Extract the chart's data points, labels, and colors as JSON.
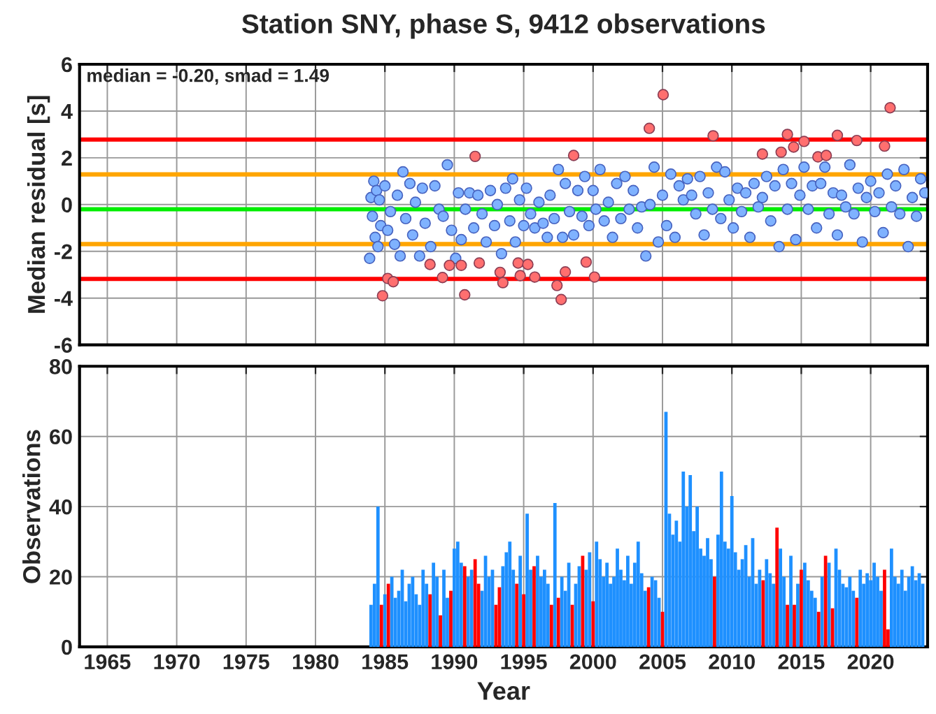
{
  "chart_data": [
    {
      "type": "scatter",
      "title": "Station SNY, phase S, 9412 observations",
      "ylabel": "Median residual [s]",
      "annotations": [
        "median = -0.20, smad = 1.49"
      ],
      "xlim": [
        1963,
        2024.1
      ],
      "xticks": [
        1965,
        1970,
        1975,
        1980,
        1985,
        1990,
        1995,
        2000,
        2005,
        2010,
        2015,
        2020
      ],
      "ylim": [
        -6,
        6
      ],
      "yticks": [
        -6,
        -4,
        -2,
        0,
        2,
        4,
        6
      ],
      "grid": true,
      "marker": "circle",
      "tick_labels": "y",
      "ref_lines": [
        {
          "axis": "y",
          "value": 2.78,
          "color": "#ff0000"
        },
        {
          "axis": "y",
          "value": 1.29,
          "color": "#ffa500"
        },
        {
          "axis": "y",
          "value": -0.2,
          "color": "#00ee00"
        },
        {
          "axis": "y",
          "value": -1.69,
          "color": "#ffa500"
        },
        {
          "axis": "y",
          "value": -3.18,
          "color": "#ff0000"
        }
      ],
      "series": [
        {
          "color": "#7fb2ff",
          "x": [
            1983.9,
            1984.0,
            1984.1,
            1984.2,
            1984.3,
            1984.4,
            1984.5,
            1984.6,
            1984.7,
            1985.0,
            1985.2,
            1985.4,
            1985.7,
            1985.9,
            1986.1,
            1986.3,
            1986.5,
            1986.8,
            1987.0,
            1987.2,
            1987.5,
            1987.7,
            1987.9,
            1988.3,
            1988.6,
            1988.9,
            1989.2,
            1989.5,
            1989.8,
            1990.1,
            1990.3,
            1990.5,
            1990.8,
            1991.1,
            1991.4,
            1991.7,
            1992.0,
            1992.3,
            1992.6,
            1992.9,
            1993.1,
            1993.4,
            1993.7,
            1994.0,
            1994.2,
            1994.4,
            1994.7,
            1995.0,
            1995.2,
            1995.5,
            1995.8,
            1996.1,
            1996.4,
            1996.7,
            1996.9,
            1997.2,
            1997.5,
            1997.8,
            1998.0,
            1998.3,
            1998.6,
            1998.9,
            1999.2,
            1999.4,
            1999.7,
            2000.0,
            2000.2,
            2000.5,
            2000.8,
            2001.1,
            2001.4,
            2001.7,
            2002.0,
            2002.3,
            2002.6,
            2002.9,
            2003.2,
            2003.5,
            2003.8,
            2004.1,
            2004.4,
            2004.7,
            2005.0,
            2005.3,
            2005.6,
            2005.9,
            2006.2,
            2006.5,
            2006.8,
            2007.1,
            2007.4,
            2007.7,
            2008.0,
            2008.3,
            2008.6,
            2008.9,
            2009.2,
            2009.5,
            2009.8,
            2010.1,
            2010.4,
            2010.7,
            2011.0,
            2011.3,
            2011.6,
            2011.9,
            2012.2,
            2012.5,
            2012.8,
            2013.1,
            2013.4,
            2013.7,
            2014.0,
            2014.3,
            2014.6,
            2014.9,
            2015.2,
            2015.5,
            2015.8,
            2016.1,
            2016.4,
            2016.7,
            2017.0,
            2017.3,
            2017.6,
            2017.9,
            2018.2,
            2018.5,
            2018.8,
            2019.1,
            2019.4,
            2019.7,
            2020.0,
            2020.3,
            2020.6,
            2020.9,
            2021.2,
            2021.5,
            2021.8,
            2022.1,
            2022.4,
            2022.7,
            2023.0,
            2023.3,
            2023.6,
            2023.9
          ],
          "values": [
            -2.3,
            0.3,
            -0.5,
            1.0,
            -1.4,
            0.6,
            -1.8,
            0.2,
            -0.9,
            0.8,
            -1.1,
            -0.3,
            -1.7,
            0.4,
            -2.2,
            1.4,
            -0.6,
            0.9,
            -1.3,
            0.1,
            -2.2,
            0.7,
            -0.8,
            -1.8,
            0.8,
            -0.2,
            -0.5,
            1.7,
            -1.1,
            -2.3,
            0.5,
            -1.5,
            -0.2,
            0.5,
            -1.0,
            0.4,
            -0.4,
            -1.6,
            0.6,
            -0.9,
            0.0,
            -2.1,
            0.7,
            -0.7,
            1.1,
            -1.6,
            0.2,
            -0.9,
            0.7,
            -0.4,
            -1.0,
            0.1,
            -0.8,
            -1.4,
            0.4,
            -0.6,
            1.5,
            -1.4,
            0.9,
            -0.3,
            -1.3,
            0.6,
            -0.5,
            1.2,
            -0.9,
            0.6,
            -0.2,
            1.5,
            -0.7,
            0.1,
            -1.4,
            0.9,
            -0.6,
            1.2,
            -0.2,
            0.6,
            -1.0,
            -0.1,
            -2.2,
            0.0,
            1.6,
            -1.6,
            0.4,
            -0.9,
            1.3,
            -1.4,
            0.8,
            0.2,
            1.1,
            0.4,
            -0.4,
            1.2,
            -1.3,
            0.5,
            -0.2,
            1.6,
            -0.6,
            1.4,
            0.2,
            -1.0,
            0.7,
            -0.3,
            0.5,
            -1.4,
            0.9,
            -0.1,
            0.3,
            1.2,
            -0.7,
            0.8,
            -1.8,
            1.5,
            -0.2,
            0.9,
            -1.5,
            0.4,
            1.6,
            -0.2,
            0.8,
            -1.0,
            0.9,
            1.6,
            -0.4,
            0.5,
            -1.3,
            0.4,
            -0.1,
            1.7,
            -0.4,
            0.7,
            -1.6,
            0.3,
            1.0,
            -0.3,
            0.5,
            -1.2,
            1.3,
            -0.1,
            0.8,
            -0.4,
            1.5,
            -1.8,
            0.3,
            -0.5,
            1.1,
            0.5
          ]
        },
        {
          "color": "#ff6f6f",
          "x": [
            1984.83,
            1985.2,
            1985.6,
            1988.25,
            1989.15,
            1989.65,
            1990.5,
            1990.75,
            1991.5,
            1991.8,
            1993.3,
            1993.5,
            1994.6,
            1994.75,
            1995.3,
            1995.8,
            1997.4,
            1997.7,
            1998.0,
            1998.6,
            1999.5,
            2000.1,
            2004.05,
            2005.05,
            2008.65,
            2012.2,
            2013.55,
            2014.0,
            2014.45,
            2015.2,
            2016.2,
            2016.8,
            2017.6,
            2019.0,
            2021.0,
            2021.4
          ],
          "values": [
            -3.9,
            -3.16,
            -3.3,
            -2.56,
            -3.12,
            -2.6,
            -2.6,
            -3.86,
            2.06,
            -2.5,
            -2.9,
            -3.34,
            -2.5,
            -3.04,
            -2.56,
            -3.1,
            -3.46,
            -4.06,
            -2.88,
            2.1,
            -2.46,
            -3.1,
            3.26,
            4.7,
            2.94,
            2.16,
            2.24,
            3.0,
            2.46,
            2.7,
            2.04,
            2.1,
            2.96,
            2.74,
            2.5,
            4.14
          ]
        }
      ]
    },
    {
      "type": "bar",
      "xlabel": "Year",
      "ylabel": "Observations",
      "xlim": [
        1963,
        2024.1
      ],
      "xticks": [
        1965,
        1970,
        1975,
        1980,
        1985,
        1990,
        1995,
        2000,
        2005,
        2010,
        2015,
        2020
      ],
      "ylim": [
        0,
        80
      ],
      "yticks": [
        0,
        20,
        40,
        60,
        80
      ],
      "grid": true,
      "series": [
        {
          "color": "#1e90ff",
          "x": [
            1984.0,
            1984.25,
            1984.5,
            1984.75,
            1985.0,
            1985.25,
            1985.5,
            1985.75,
            1986.0,
            1986.25,
            1986.5,
            1986.75,
            1987.0,
            1987.25,
            1987.5,
            1987.75,
            1988.0,
            1988.25,
            1988.5,
            1988.75,
            1989.0,
            1989.25,
            1989.5,
            1989.75,
            1990.0,
            1990.25,
            1990.5,
            1990.75,
            1991.0,
            1991.25,
            1991.5,
            1991.75,
            1992.0,
            1992.25,
            1992.5,
            1992.75,
            1993.0,
            1993.25,
            1993.5,
            1993.75,
            1994.0,
            1994.25,
            1994.5,
            1994.75,
            1995.0,
            1995.25,
            1995.5,
            1995.75,
            1996.0,
            1996.25,
            1996.5,
            1996.75,
            1997.0,
            1997.25,
            1997.5,
            1997.75,
            1998.0,
            1998.25,
            1998.5,
            1998.75,
            1999.0,
            1999.25,
            1999.5,
            1999.75,
            2000.0,
            2000.25,
            2000.5,
            2000.75,
            2001.0,
            2001.25,
            2001.5,
            2001.75,
            2002.0,
            2002.25,
            2002.5,
            2002.75,
            2003.0,
            2003.25,
            2003.5,
            2003.75,
            2004.0,
            2004.25,
            2004.5,
            2004.75,
            2005.0,
            2005.25,
            2005.5,
            2005.75,
            2006.0,
            2006.25,
            2006.5,
            2006.75,
            2007.0,
            2007.25,
            2007.5,
            2007.75,
            2008.0,
            2008.25,
            2008.5,
            2008.75,
            2009.0,
            2009.25,
            2009.5,
            2009.75,
            2010.0,
            2010.25,
            2010.5,
            2010.75,
            2011.0,
            2011.25,
            2011.5,
            2011.75,
            2012.0,
            2012.25,
            2012.5,
            2012.75,
            2013.0,
            2013.25,
            2013.5,
            2013.75,
            2014.0,
            2014.25,
            2014.5,
            2014.75,
            2015.0,
            2015.25,
            2015.5,
            2015.75,
            2016.0,
            2016.25,
            2016.5,
            2016.75,
            2017.0,
            2017.25,
            2017.5,
            2017.75,
            2018.0,
            2018.25,
            2018.5,
            2018.75,
            2019.0,
            2019.25,
            2019.5,
            2019.75,
            2020.0,
            2020.25,
            2020.5,
            2020.75,
            2021.0,
            2021.25,
            2021.5,
            2021.75,
            2022.0,
            2022.25,
            2022.5,
            2022.75,
            2023.0,
            2023.25,
            2023.5,
            2023.75
          ],
          "values": [
            12,
            18,
            40,
            null,
            15,
            null,
            20,
            14,
            16,
            22,
            13,
            18,
            20,
            15,
            12,
            22,
            18,
            null,
            24,
            20,
            null,
            22,
            14,
            null,
            28,
            30,
            24,
            null,
            20,
            22,
            null,
            null,
            16,
            26,
            20,
            22,
            null,
            null,
            23,
            27,
            30,
            22,
            null,
            26,
            null,
            38,
            22,
            null,
            26,
            20,
            22,
            18,
            null,
            41,
            null,
            20,
            16,
            24,
            null,
            18,
            23,
            null,
            22,
            27,
            null,
            30,
            25,
            20,
            24,
            18,
            20,
            28,
            22,
            19,
            26,
            18,
            24,
            30,
            21,
            16,
            null,
            20,
            19,
            14,
            null,
            67,
            38,
            32,
            36,
            30,
            50,
            40,
            49,
            33,
            40,
            28,
            26,
            31,
            25,
            null,
            32,
            50,
            30,
            28,
            43,
            27,
            22,
            25,
            29,
            20,
            31,
            18,
            22,
            null,
            25,
            21,
            18,
            null,
            28,
            20,
            null,
            26,
            null,
            18,
            null,
            24,
            19,
            16,
            14,
            null,
            20,
            null,
            24,
            null,
            28,
            22,
            18,
            17,
            20,
            16,
            null,
            22,
            18,
            21,
            19,
            24,
            20,
            16,
            null,
            null,
            28,
            20,
            18,
            22,
            16,
            20,
            23,
            19,
            21,
            18
          ]
        },
        {
          "color": "#ff0000",
          "x": [
            1984.75,
            1985.25,
            1988.25,
            1989.0,
            1989.75,
            1990.75,
            1991.5,
            1991.75,
            1993.0,
            1993.25,
            1994.5,
            1995.0,
            1995.75,
            1997.0,
            1997.5,
            1998.5,
            1999.25,
            2000.0,
            2004.0,
            2005.0,
            2008.75,
            2012.25,
            2013.25,
            2014.0,
            2014.5,
            2015.0,
            2016.25,
            2016.75,
            2017.25,
            2019.0,
            2021.0,
            2021.25
          ],
          "values": [
            12,
            18,
            15,
            9,
            16,
            23,
            25,
            18,
            12,
            17,
            18,
            15,
            23,
            12,
            14,
            12,
            26,
            13,
            17,
            10,
            20,
            19,
            34,
            12,
            12,
            22,
            10,
            26,
            11,
            14,
            22,
            5
          ]
        }
      ]
    }
  ]
}
